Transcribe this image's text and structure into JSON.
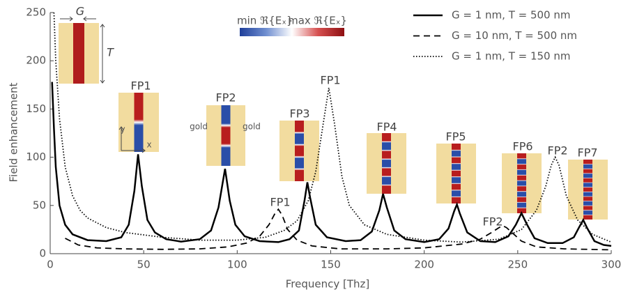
{
  "chart_data": {
    "type": "line",
    "xlabel": "Frequency [Thz]",
    "ylabel": "Field enhancement",
    "xlim": [
      0,
      300
    ],
    "ylim": [
      0,
      250
    ],
    "xticks": [
      0,
      50,
      100,
      150,
      200,
      250,
      300
    ],
    "yticks": [
      0,
      50,
      100,
      150,
      200,
      250
    ],
    "grid": false,
    "legend": "upper right",
    "colorbar": {
      "min_label": "min ℜ{Eₓ}",
      "max_label": "max ℜ{Eₓ}"
    },
    "annotations": [
      "G",
      "T",
      "FP1",
      "FP2",
      "FP3",
      "FP4",
      "FP5",
      "FP6",
      "FP7",
      "FP1",
      "FP2",
      "FP1",
      "FP2",
      "y",
      "x",
      "gold",
      "gold"
    ],
    "series": [
      {
        "name": "G = 1 nm, T = 500 nm",
        "color": "#000000",
        "linestyle": "solid",
        "x": [
          1,
          2,
          3,
          5,
          8,
          12,
          20,
          30,
          38,
          42,
          45,
          47,
          49,
          52,
          56,
          62,
          70,
          80,
          86,
          90,
          93.5,
          96,
          99,
          104,
          112,
          122,
          128,
          133,
          136,
          137.5,
          139,
          142,
          148,
          158,
          166,
          172,
          176,
          178,
          180,
          184,
          190,
          200,
          208,
          213,
          216,
          217.5,
          219,
          223,
          230,
          238,
          245,
          249,
          252,
          255,
          259,
          266,
          274,
          280,
          283,
          285,
          287,
          291,
          296,
          300
        ],
        "values": [
          178,
          130,
          90,
          50,
          30,
          20,
          14,
          13,
          17,
          30,
          65,
          103,
          70,
          35,
          22,
          15,
          12.5,
          15,
          24,
          48,
          88,
          55,
          30,
          18,
          13,
          12,
          15,
          24,
          55,
          74,
          58,
          30,
          17,
          13,
          14,
          23,
          45,
          62,
          48,
          24,
          15,
          12,
          15,
          26,
          44,
          51,
          42,
          22,
          13,
          12,
          18,
          30,
          42,
          30,
          16,
          11,
          11,
          17,
          28,
          35,
          27,
          13,
          9,
          8
        ]
      },
      {
        "name": "G = 10 nm, T = 500 nm",
        "color": "#000000",
        "linestyle": "dashed",
        "x": [
          8,
          15,
          25,
          40,
          60,
          80,
          95,
          105,
          112,
          117,
          120,
          122,
          124,
          127,
          132,
          140,
          155,
          180,
          200,
          220,
          230,
          236,
          240,
          242,
          244,
          248,
          252,
          260,
          275,
          300
        ],
        "values": [
          16,
          9,
          6,
          5,
          4.5,
          5,
          7,
          11,
          18,
          30,
          41,
          46,
          40,
          25,
          14,
          8,
          5,
          5,
          6,
          10,
          15,
          22,
          27,
          29,
          27,
          20,
          13,
          7,
          5,
          4
        ]
      },
      {
        "name": "G = 1 nm, T = 150 nm",
        "color": "#000000",
        "linestyle": "dotted",
        "x": [
          2,
          3,
          5,
          8,
          12,
          16,
          20,
          30,
          40,
          60,
          80,
          100,
          115,
          125,
          132,
          138,
          142,
          146,
          149,
          152,
          156,
          160,
          168,
          180,
          200,
          220,
          240,
          252,
          260,
          265,
          268,
          270,
          272,
          276,
          282,
          290,
          300
        ],
        "values": [
          250,
          200,
          140,
          90,
          60,
          45,
          37,
          27,
          22,
          17,
          14,
          14,
          17,
          24,
          34,
          55,
          85,
          135,
          172,
          135,
          80,
          50,
          30,
          20,
          14,
          12,
          15,
          25,
          45,
          70,
          92,
          100,
          92,
          60,
          35,
          20,
          12
        ]
      }
    ]
  }
}
